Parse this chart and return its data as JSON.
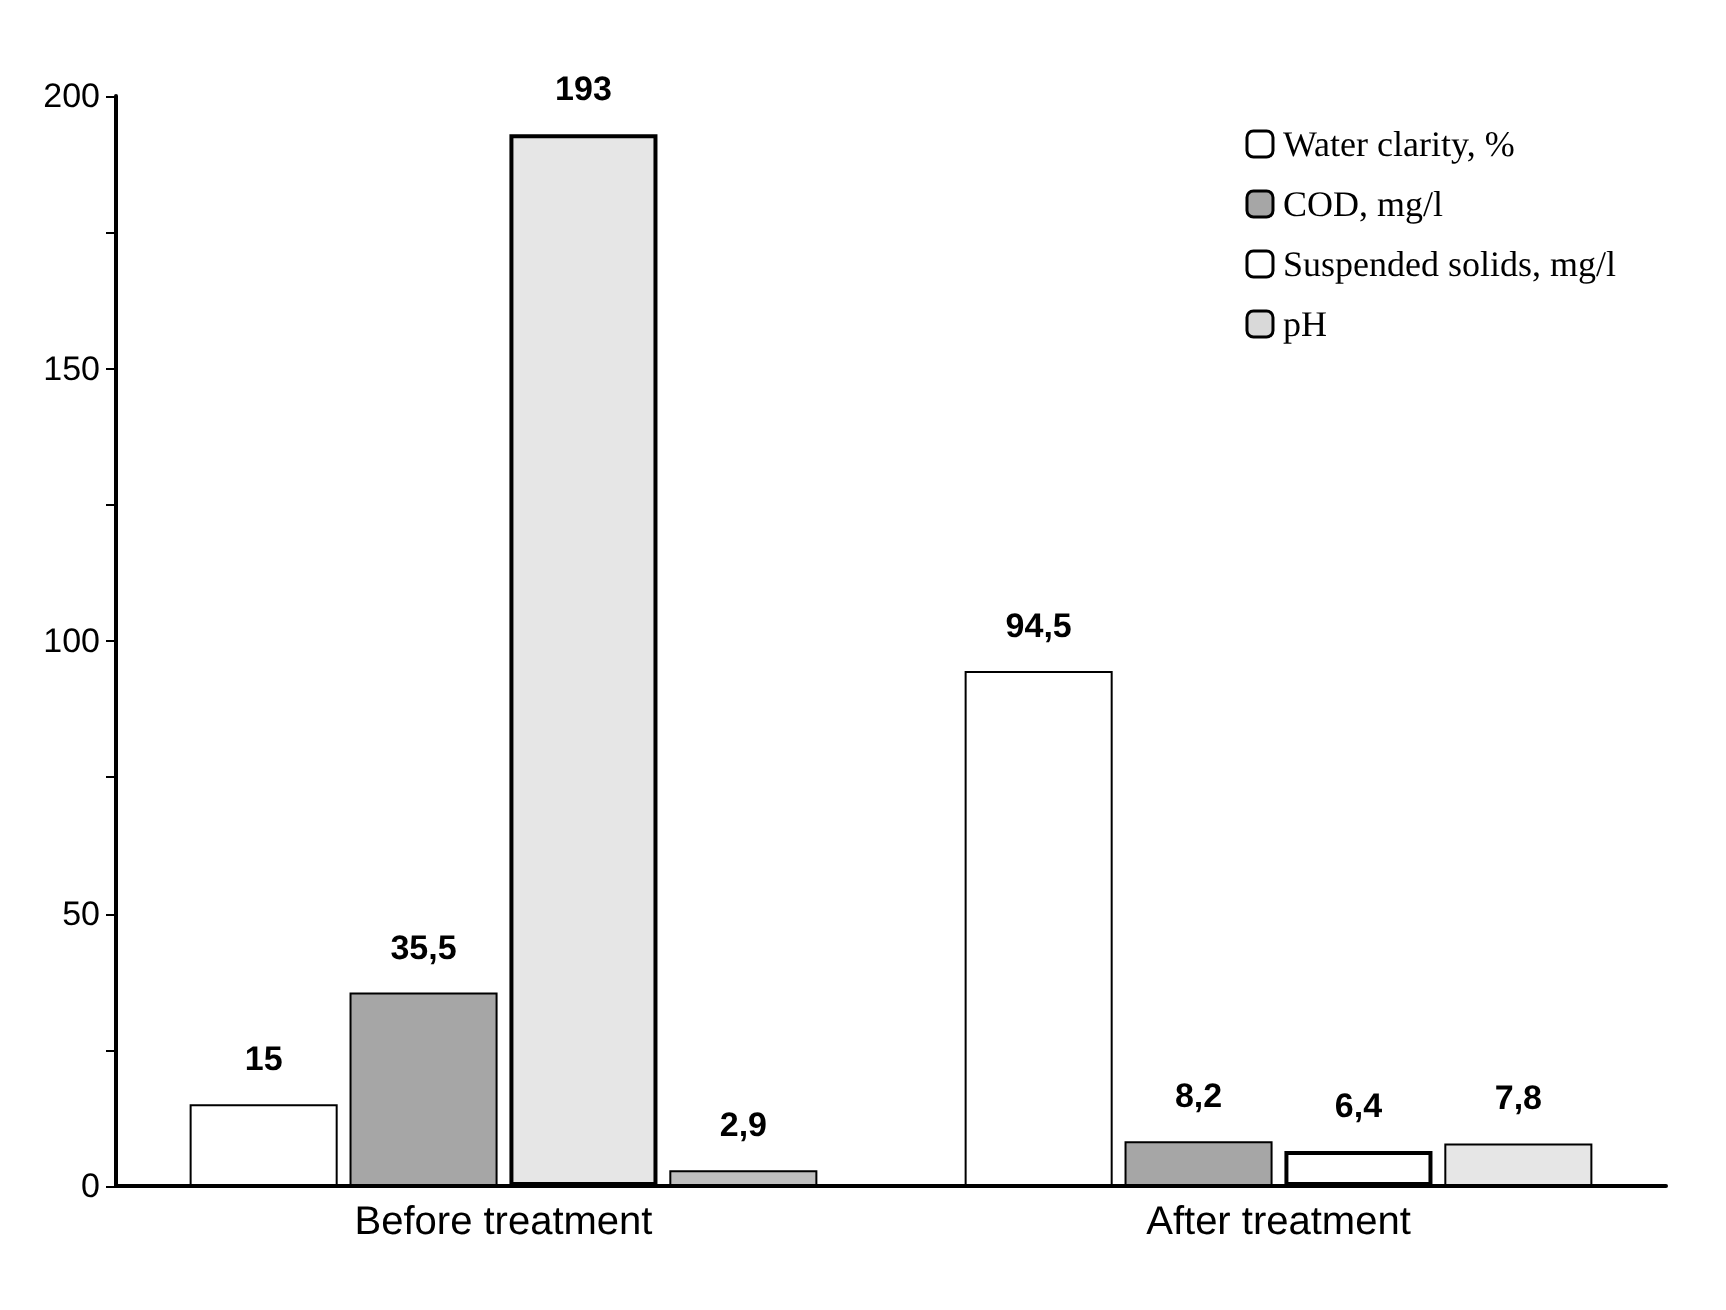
{
  "chart_data": {
    "type": "bar",
    "categories": [
      "Before treatment",
      "After treatment"
    ],
    "series": [
      {
        "name": "Water clarity, %",
        "color": "#ffffff",
        "values": [
          15,
          94.5
        ],
        "value_labels": [
          "15",
          "94,5"
        ]
      },
      {
        "name": "COD, mg/l",
        "color": "#a6a6a6",
        "values": [
          35.5,
          8.2
        ],
        "value_labels": [
          "35,5",
          "8,2"
        ]
      },
      {
        "name": "Suspended solids, mg/l",
        "color": "#ffffff",
        "colors": [
          "#e6e6e6",
          "#ffffff"
        ],
        "values": [
          193,
          6.4
        ],
        "value_labels": [
          "193",
          "6,4"
        ]
      },
      {
        "name": "pH",
        "color": "#d9d9d9",
        "colors": [
          "#bfbfbf",
          "#e6e6e6"
        ],
        "values": [
          2.9,
          7.8
        ],
        "value_labels": [
          "2,9",
          "7,8"
        ]
      }
    ],
    "ylim": [
      0,
      200
    ],
    "yticks": [
      0,
      {
        "value": 25,
        "label": null
      },
      50,
      {
        "value": 75,
        "label": null
      },
      100,
      {
        "value": 125,
        "label": null
      },
      150,
      {
        "value": 175,
        "label": null
      },
      200
    ],
    "legend": "top right",
    "grid": false
  }
}
